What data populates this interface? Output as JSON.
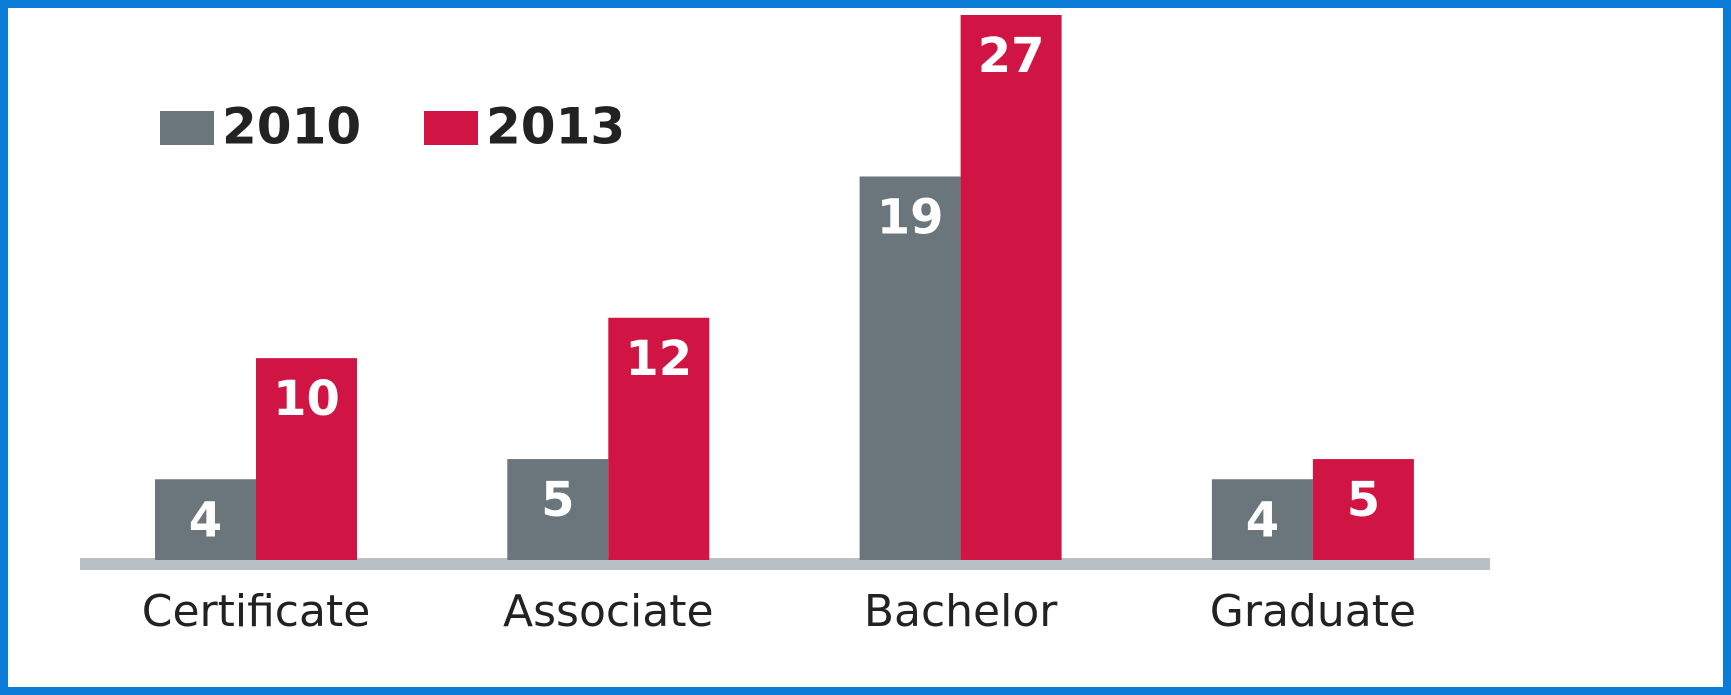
{
  "chart_data": {
    "type": "bar",
    "categories": [
      "Certificate",
      "Associate",
      "Bachelor",
      "Graduate"
    ],
    "series": [
      {
        "name": "2010",
        "color": "#6b757c",
        "values": [
          4,
          5,
          19,
          4
        ]
      },
      {
        "name": "2013",
        "color": "#d01443",
        "values": [
          10,
          12,
          27,
          5
        ]
      }
    ],
    "legend": "top-left"
  }
}
